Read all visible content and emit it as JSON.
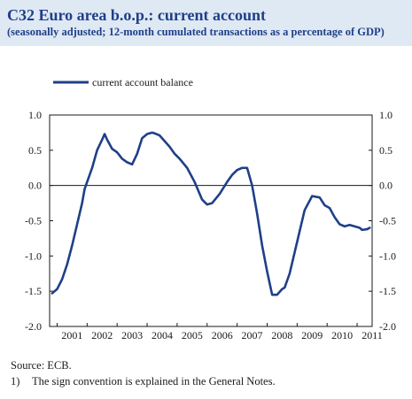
{
  "header": {
    "title": "C32 Euro area b.o.p.: current account",
    "subtitle": "(seasonally adjusted; 12-month cumulated transactions as a percentage of GDP)"
  },
  "footer": {
    "source": "Source: ECB.",
    "footnote_marker": "1)",
    "footnote_text": "The sign convention is explained in the General Notes."
  },
  "colors": {
    "line": "#1f3f88",
    "header_band": "#dfe9f4",
    "text": "#1f3f88"
  },
  "chart_data": {
    "type": "line",
    "title": "",
    "xlabel": "",
    "ylabel": "",
    "ylim": [
      -2.0,
      1.0
    ],
    "yticks": [
      "1.0",
      "0.5",
      "0.0",
      "-0.5",
      "-1.0",
      "-1.5",
      "-2.0"
    ],
    "ytick_values": [
      1.0,
      0.5,
      0.0,
      -0.5,
      -1.0,
      -1.5,
      -2.0
    ],
    "xlim": [
      2000.75,
      2011.5
    ],
    "xtick_labels": [
      "2001",
      "2002",
      "2003",
      "2004",
      "2005",
      "2006",
      "2007",
      "2008",
      "2009",
      "2010",
      "2011"
    ],
    "grid": false,
    "zero_line": true,
    "legend_position": "top-left",
    "series": [
      {
        "name": "current account balance",
        "x": [
          2000.833,
          2001.0,
          2001.167,
          2001.333,
          2001.5,
          2001.667,
          2001.833,
          2001.917,
          2002.0,
          2002.167,
          2002.333,
          2002.5,
          2002.583,
          2002.667,
          2002.833,
          2003.0,
          2003.167,
          2003.333,
          2003.5,
          2003.667,
          2003.833,
          2004.0,
          2004.167,
          2004.25,
          2004.417,
          2004.583,
          2004.75,
          2004.917,
          2005.083,
          2005.333,
          2005.583,
          2005.833,
          2006.0,
          2006.167,
          2006.417,
          2006.667,
          2006.833,
          2007.0,
          2007.167,
          2007.333,
          2007.5,
          2007.667,
          2007.833,
          2008.0,
          2008.167,
          2008.333,
          2008.5,
          2008.583,
          2008.75,
          2008.917,
          2009.083,
          2009.25,
          2009.5,
          2009.75,
          2009.917,
          2010.083,
          2010.25,
          2010.417,
          2010.583,
          2010.75,
          2010.917,
          2011.083,
          2011.167,
          2011.333,
          2011.417
        ],
        "values": [
          -1.53,
          -1.47,
          -1.33,
          -1.12,
          -0.85,
          -0.55,
          -0.25,
          -0.05,
          0.05,
          0.25,
          0.5,
          0.65,
          0.73,
          0.65,
          0.52,
          0.47,
          0.38,
          0.33,
          0.3,
          0.45,
          0.67,
          0.73,
          0.75,
          0.74,
          0.71,
          0.63,
          0.55,
          0.45,
          0.38,
          0.25,
          0.05,
          -0.2,
          -0.27,
          -0.25,
          -0.12,
          0.05,
          0.15,
          0.22,
          0.25,
          0.25,
          0.0,
          -0.4,
          -0.85,
          -1.22,
          -1.55,
          -1.55,
          -1.47,
          -1.45,
          -1.25,
          -0.95,
          -0.65,
          -0.35,
          -0.15,
          -0.17,
          -0.28,
          -0.32,
          -0.45,
          -0.55,
          -0.58,
          -0.56,
          -0.58,
          -0.6,
          -0.63,
          -0.62,
          -0.6
        ]
      }
    ]
  }
}
